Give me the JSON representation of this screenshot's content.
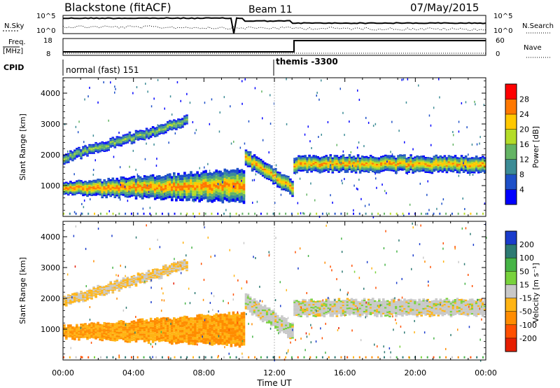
{
  "header": {
    "site": "Blackstone (fitACF)",
    "beam": "Beam 11",
    "date": "07/May/2015"
  },
  "params": {
    "nsky_label": "N.Sky",
    "nsky_ticks": [
      "10^5",
      "10^0"
    ],
    "nsearch_label": "N.Search",
    "nsearch_ticks": [
      "10^5",
      "10^0"
    ],
    "freq_label_1": "Freq.",
    "freq_label_2": "[MHz]",
    "freq_ticks": [
      "18",
      "8"
    ],
    "nave_label": "Nave",
    "nave_ticks": [
      "60",
      "0"
    ],
    "cpid_label": "CPID",
    "cpid_segments": [
      {
        "label": "normal (fast) 151",
        "start_hour": 0,
        "end_hour": 12
      },
      {
        "label": "themis -3300",
        "start_hour": 12,
        "end_hour": 24
      }
    ]
  },
  "time_axis": {
    "title": "Time UT",
    "ticks": [
      "00:00",
      "04:00",
      "08:00",
      "12:00",
      "16:00",
      "20:00",
      "00:00"
    ]
  },
  "chart_data": [
    {
      "type": "heatmap",
      "title": "",
      "ylabel": "Slant Range [km]",
      "xlabel": "",
      "yticks": [
        "1000",
        "2000",
        "3000",
        "4000"
      ],
      "ylim": [
        0,
        4500
      ],
      "xlim_hours": [
        0,
        24
      ],
      "colorbar_label": "Power [dB]",
      "colorbar_ticks": [
        "4",
        "8",
        "12",
        "16",
        "20",
        "24",
        "28"
      ],
      "colorbar_colors": [
        "#0000ff",
        "#1e50c8",
        "#3c8c96",
        "#64b464",
        "#b4dc28",
        "#ffc800",
        "#ff7800",
        "#ff0000"
      ],
      "colorbar_range": [
        0,
        30
      ],
      "bands": [
        {
          "name": "early low",
          "start_hour": 0,
          "end_hour": 10.3,
          "range_start_km": 900,
          "range_end_km": 1000,
          "peak_db": 26
        },
        {
          "name": "early high",
          "start_hour": 0,
          "end_hour": 7,
          "range_start_km": 1900,
          "range_end_km": 3100,
          "peak_db": 16
        },
        {
          "name": "descending",
          "start_hour": 10.3,
          "end_hour": 13,
          "range_start_km": 1900,
          "range_end_km": 900,
          "peak_db": 24
        },
        {
          "name": "late",
          "start_hour": 13,
          "end_hour": 24,
          "range_start_km": 1700,
          "range_end_km": 1700,
          "peak_db": 24
        }
      ]
    },
    {
      "type": "heatmap",
      "title": "",
      "ylabel": "Slant Range [km]",
      "xlabel": "Time UT",
      "yticks": [
        "1000",
        "2000",
        "3000",
        "4000"
      ],
      "ylim": [
        0,
        4500
      ],
      "xlim_hours": [
        0,
        24
      ],
      "colorbar_label": "Velocity [m s⁻¹]",
      "colorbar_ticks": [
        "200",
        "100",
        "50",
        "15",
        "-15",
        "-50",
        "-100",
        "-200"
      ],
      "colorbar_colors": [
        "#1a3ccc",
        "#2d7a73",
        "#46b446",
        "#78d23c",
        "#c8c8c8",
        "#ffb414",
        "#ff8c00",
        "#ff5000",
        "#e61e00"
      ],
      "bands": [
        {
          "name": "early low",
          "start_hour": 0,
          "end_hour": 10.3,
          "range_start_km": 900,
          "range_end_km": 1000,
          "velocity": -50
        },
        {
          "name": "early high",
          "start_hour": 0,
          "end_hour": 7,
          "range_start_km": 1900,
          "range_end_km": 3100,
          "velocity": -15
        },
        {
          "name": "descending",
          "start_hour": 10.3,
          "end_hour": 13,
          "range_start_km": 1900,
          "range_end_km": 900,
          "velocity": 0
        },
        {
          "name": "late",
          "start_hour": 13,
          "end_hour": 24,
          "range_start_km": 1700,
          "range_end_km": 1700,
          "velocity": 0
        }
      ]
    }
  ]
}
